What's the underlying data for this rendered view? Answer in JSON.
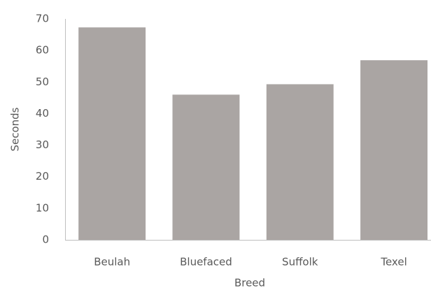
{
  "chart_data": {
    "type": "bar",
    "x_label": "Breed",
    "y_label": "Seconds",
    "categories": [
      "Beulah",
      "Bluefaced",
      "Suffolk",
      "Texel"
    ],
    "values": [
      67.3,
      46.0,
      49.3,
      56.9
    ],
    "color": "#aaa5a3",
    "ylim": [
      0,
      70
    ],
    "yticks": [
      0,
      10,
      20,
      30,
      40,
      50,
      60,
      70
    ],
    "grid": false
  }
}
